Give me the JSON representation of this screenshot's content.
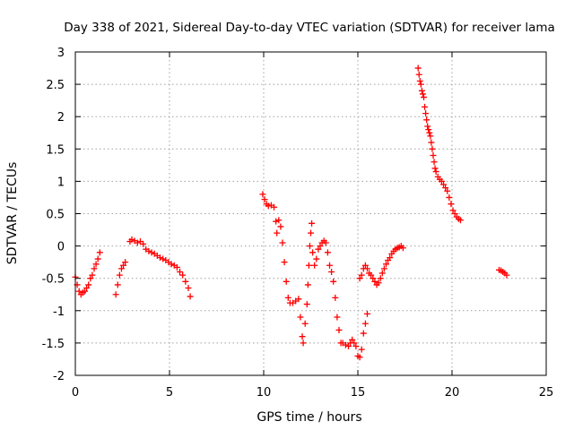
{
  "chart_data": {
    "type": "scatter",
    "title": "Day 338 of 2021, Sidereal Day-to-day VTEC variation (SDTVAR) for receiver lama",
    "xlabel": "GPS time / hours",
    "ylabel": "SDTVAR / TECUs",
    "xlim": [
      0,
      25
    ],
    "ylim": [
      -2,
      3
    ],
    "xticks": [
      0,
      5,
      10,
      15,
      20,
      25
    ],
    "xtick_labels": [
      "0",
      "5",
      "10",
      "15",
      "20",
      "25"
    ],
    "yticks": [
      -2,
      -1.5,
      -1,
      -0.5,
      0,
      0.5,
      1,
      1.5,
      2,
      2.5,
      3
    ],
    "ytick_labels": [
      "-2",
      "-1.5",
      "-1",
      "-0.5",
      "0",
      "0.5",
      "1",
      "1.5",
      "2",
      "2.5",
      "3"
    ],
    "grid": true,
    "marker": "+",
    "color": "#ff0000",
    "series": [
      {
        "name": "SDTVAR",
        "segments": [
          [
            [
              0.0,
              -0.48
            ],
            [
              0.1,
              -0.6
            ],
            [
              0.2,
              -0.7
            ],
            [
              0.3,
              -0.75
            ],
            [
              0.4,
              -0.72
            ],
            [
              0.5,
              -0.7
            ],
            [
              0.6,
              -0.65
            ],
            [
              0.7,
              -0.6
            ],
            [
              0.8,
              -0.5
            ],
            [
              0.9,
              -0.45
            ],
            [
              1.0,
              -0.35
            ],
            [
              1.1,
              -0.28
            ],
            [
              1.2,
              -0.2
            ],
            [
              1.3,
              -0.1
            ]
          ],
          [
            [
              2.15,
              -0.75
            ],
            [
              2.25,
              -0.6
            ],
            [
              2.35,
              -0.45
            ],
            [
              2.45,
              -0.35
            ],
            [
              2.55,
              -0.3
            ],
            [
              2.65,
              -0.25
            ]
          ],
          [
            [
              2.9,
              0.07
            ],
            [
              3.0,
              0.1
            ],
            [
              3.15,
              0.08
            ],
            [
              3.3,
              0.05
            ],
            [
              3.45,
              0.07
            ],
            [
              3.6,
              0.03
            ],
            [
              3.75,
              -0.05
            ],
            [
              3.9,
              -0.08
            ],
            [
              4.05,
              -0.1
            ],
            [
              4.2,
              -0.12
            ],
            [
              4.35,
              -0.15
            ],
            [
              4.5,
              -0.18
            ],
            [
              4.65,
              -0.2
            ],
            [
              4.8,
              -0.22
            ],
            [
              4.95,
              -0.25
            ],
            [
              5.1,
              -0.28
            ],
            [
              5.25,
              -0.3
            ],
            [
              5.4,
              -0.33
            ],
            [
              5.55,
              -0.4
            ],
            [
              5.7,
              -0.45
            ],
            [
              5.85,
              -0.55
            ],
            [
              6.0,
              -0.65
            ],
            [
              6.1,
              -0.78
            ]
          ],
          [
            [
              9.95,
              0.8
            ],
            [
              10.05,
              0.72
            ],
            [
              10.15,
              0.65
            ],
            [
              10.25,
              0.62
            ],
            [
              10.4,
              0.63
            ],
            [
              10.55,
              0.6
            ],
            [
              10.65,
              0.38
            ],
            [
              10.7,
              0.2
            ],
            [
              10.8,
              0.4
            ],
            [
              10.9,
              0.3
            ],
            [
              11.0,
              0.05
            ],
            [
              11.1,
              -0.25
            ],
            [
              11.2,
              -0.55
            ],
            [
              11.3,
              -0.8
            ],
            [
              11.4,
              -0.88
            ],
            [
              11.55,
              -0.88
            ],
            [
              11.7,
              -0.85
            ],
            [
              11.85,
              -0.82
            ],
            [
              11.95,
              -1.1
            ],
            [
              12.05,
              -1.4
            ],
            [
              12.1,
              -1.5
            ],
            [
              12.2,
              -1.2
            ],
            [
              12.3,
              -0.9
            ],
            [
              12.35,
              -0.6
            ],
            [
              12.4,
              -0.3
            ],
            [
              12.45,
              0.0
            ],
            [
              12.5,
              0.2
            ],
            [
              12.55,
              0.35
            ],
            [
              12.6,
              -0.1
            ],
            [
              12.7,
              -0.3
            ],
            [
              12.8,
              -0.2
            ],
            [
              12.9,
              -0.05
            ],
            [
              13.0,
              0.0
            ],
            [
              13.1,
              0.05
            ],
            [
              13.2,
              0.08
            ],
            [
              13.3,
              0.05
            ],
            [
              13.4,
              -0.1
            ],
            [
              13.5,
              -0.3
            ],
            [
              13.6,
              -0.4
            ],
            [
              13.7,
              -0.55
            ],
            [
              13.8,
              -0.8
            ],
            [
              13.9,
              -1.1
            ],
            [
              14.0,
              -1.3
            ],
            [
              14.1,
              -1.5
            ],
            [
              14.2,
              -1.5
            ],
            [
              14.35,
              -1.53
            ],
            [
              14.5,
              -1.55
            ],
            [
              14.6,
              -1.5
            ],
            [
              14.7,
              -1.45
            ],
            [
              14.8,
              -1.5
            ],
            [
              14.9,
              -1.55
            ],
            [
              15.0,
              -1.7
            ],
            [
              15.1,
              -1.72
            ],
            [
              15.2,
              -1.6
            ],
            [
              15.3,
              -1.35
            ],
            [
              15.4,
              -1.2
            ],
            [
              15.5,
              -1.05
            ]
          ],
          [
            [
              15.1,
              -0.5
            ],
            [
              15.2,
              -0.45
            ],
            [
              15.3,
              -0.35
            ],
            [
              15.4,
              -0.3
            ],
            [
              15.5,
              -0.35
            ],
            [
              15.6,
              -0.42
            ],
            [
              15.7,
              -0.45
            ],
            [
              15.8,
              -0.5
            ],
            [
              15.9,
              -0.55
            ],
            [
              16.0,
              -0.6
            ],
            [
              16.1,
              -0.57
            ],
            [
              16.2,
              -0.5
            ],
            [
              16.3,
              -0.42
            ],
            [
              16.4,
              -0.35
            ],
            [
              16.5,
              -0.28
            ],
            [
              16.6,
              -0.22
            ],
            [
              16.7,
              -0.18
            ],
            [
              16.8,
              -0.12
            ],
            [
              16.9,
              -0.08
            ],
            [
              17.0,
              -0.05
            ],
            [
              17.1,
              -0.03
            ],
            [
              17.2,
              -0.02
            ],
            [
              17.3,
              0.0
            ],
            [
              17.4,
              -0.03
            ]
          ],
          [
            [
              18.2,
              2.75
            ],
            [
              18.25,
              2.65
            ],
            [
              18.3,
              2.55
            ],
            [
              18.35,
              2.5
            ],
            [
              18.4,
              2.4
            ],
            [
              18.45,
              2.35
            ],
            [
              18.5,
              2.3
            ],
            [
              18.55,
              2.15
            ],
            [
              18.6,
              2.05
            ],
            [
              18.65,
              1.95
            ],
            [
              18.7,
              1.85
            ],
            [
              18.75,
              1.8
            ],
            [
              18.8,
              1.75
            ],
            [
              18.85,
              1.7
            ],
            [
              18.9,
              1.6
            ],
            [
              18.95,
              1.5
            ],
            [
              19.0,
              1.4
            ],
            [
              19.05,
              1.3
            ],
            [
              19.1,
              1.2
            ],
            [
              19.15,
              1.15
            ],
            [
              19.25,
              1.07
            ],
            [
              19.35,
              1.03
            ],
            [
              19.45,
              1.0
            ],
            [
              19.55,
              0.95
            ],
            [
              19.65,
              0.9
            ],
            [
              19.75,
              0.85
            ],
            [
              19.85,
              0.75
            ],
            [
              19.95,
              0.65
            ],
            [
              20.05,
              0.55
            ],
            [
              20.15,
              0.5
            ],
            [
              20.25,
              0.45
            ],
            [
              20.35,
              0.42
            ],
            [
              20.45,
              0.4
            ]
          ],
          [
            [
              22.5,
              -0.37
            ],
            [
              22.6,
              -0.38
            ],
            [
              22.7,
              -0.4
            ],
            [
              22.8,
              -0.42
            ],
            [
              22.9,
              -0.45
            ]
          ]
        ]
      }
    ]
  }
}
